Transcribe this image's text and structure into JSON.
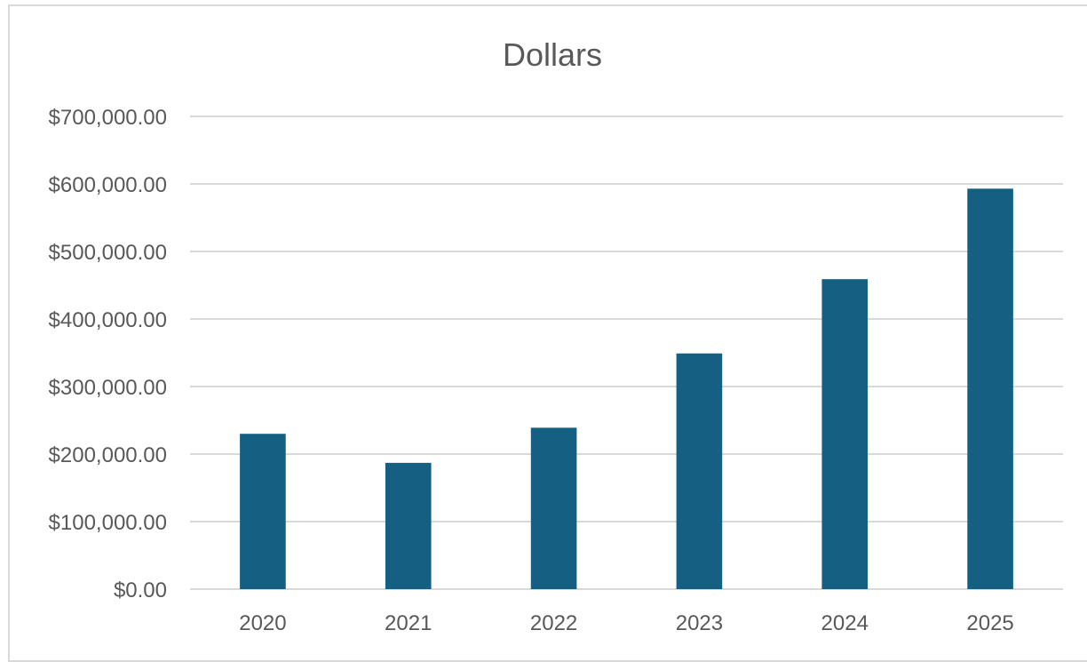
{
  "chart_data": {
    "type": "bar",
    "title": "Dollars",
    "xlabel": "",
    "ylabel": "",
    "categories": [
      "2020",
      "2021",
      "2022",
      "2023",
      "2024",
      "2025"
    ],
    "values": [
      230000,
      187000,
      239000,
      349000,
      459000,
      593000
    ],
    "ylim": [
      0,
      700000
    ],
    "yticks": [
      0,
      100000,
      200000,
      300000,
      400000,
      500000,
      600000,
      700000
    ],
    "ytick_labels": [
      "$0.00",
      "$100,000.00",
      "$200,000.00",
      "$300,000.00",
      "$400,000.00",
      "$500,000.00",
      "$600,000.00",
      "$700,000.00"
    ],
    "grid": true,
    "legend": "none",
    "colors": {
      "bar": "#156082",
      "grid": "#d9d9d9",
      "text": "#595959"
    }
  }
}
